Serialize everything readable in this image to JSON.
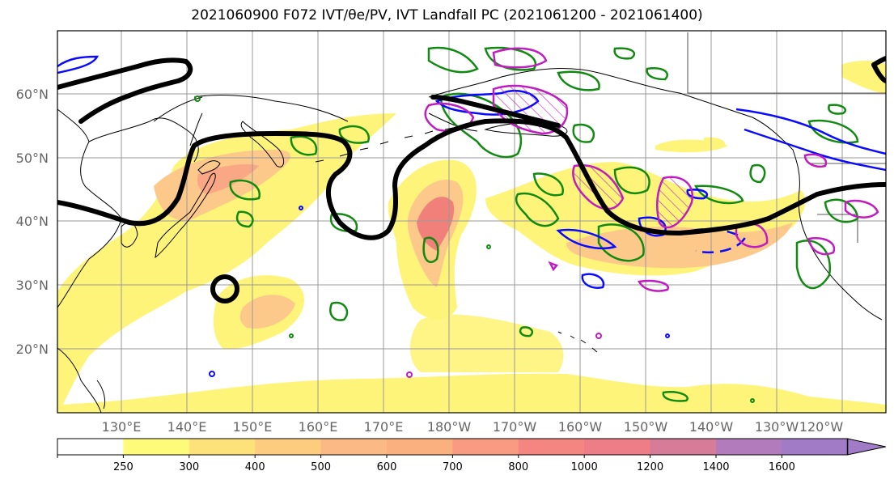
{
  "title": "2021060900 F072 IVT/θe/PV, IVT Landfall PC (2021061200 - 2021061400)",
  "map": {
    "lat_labels": [
      "60°N",
      "50°N",
      "40°N",
      "30°N",
      "20°N"
    ],
    "lon_labels": [
      "130°E",
      "140°E",
      "150°E",
      "160°E",
      "170°E",
      "180°W",
      "170°W",
      "160°W",
      "150°W",
      "140°W",
      "130°W",
      "120°W"
    ],
    "colors": {
      "ivt_fill": "#fff47a",
      "ivt_mid": "#fdc98a",
      "ivt_high": "#f2807a",
      "pv_contour": "#000000",
      "green_contour": "#108a10",
      "blue_contour": "#0a0aff",
      "magenta_contour": "#c01cc0",
      "coast": "#000000",
      "grid": "#999999"
    }
  },
  "colorbar": {
    "ticks": [
      "250",
      "300",
      "400",
      "500",
      "600",
      "700",
      "800",
      "1000",
      "1200",
      "1400",
      "1600"
    ],
    "colors": [
      "#ffffff",
      "#fffb7a",
      "#fde27a",
      "#fdcc7f",
      "#fbb986",
      "#fbb07f",
      "#f99b82",
      "#f58580",
      "#ed7d87",
      "#d67b98",
      "#b27bbb",
      "#a27bc6"
    ]
  }
}
